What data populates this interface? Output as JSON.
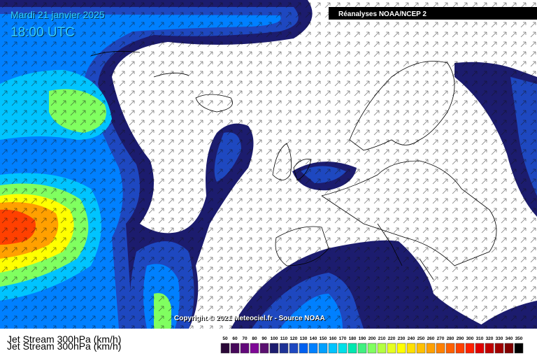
{
  "header": {
    "date": "Mardi 21 janvier 2025",
    "time": "18:00 UTC",
    "source": "Réanalyses NOAA/NCEP 2"
  },
  "copyright": "Copyright © 2021 Meteociel.fr - Source NOAA",
  "footer": {
    "title": "Jet Stream 300hPa (km/h)"
  },
  "legend": {
    "values": [
      50,
      60,
      70,
      80,
      90,
      100,
      110,
      120,
      130,
      140,
      150,
      160,
      170,
      180,
      190,
      200,
      210,
      220,
      230,
      240,
      250,
      260,
      270,
      280,
      290,
      300,
      310,
      320,
      330,
      340,
      350
    ],
    "colors": [
      "#2a0838",
      "#46085a",
      "#62087a",
      "#7e0896",
      "#5a1070",
      "#1c1c6e",
      "#1e3296",
      "#1e48c0",
      "#0060f0",
      "#0080ff",
      "#00a0ff",
      "#00c4ff",
      "#00e0e8",
      "#00e8b0",
      "#40f080",
      "#80ff60",
      "#b4ff40",
      "#e6ff20",
      "#ffff00",
      "#ffe000",
      "#ffc000",
      "#ffa000",
      "#ff8000",
      "#ff6000",
      "#ff4000",
      "#ff2000",
      "#e00000",
      "#c00000",
      "#a00000",
      "#800000",
      "#000000"
    ]
  }
}
